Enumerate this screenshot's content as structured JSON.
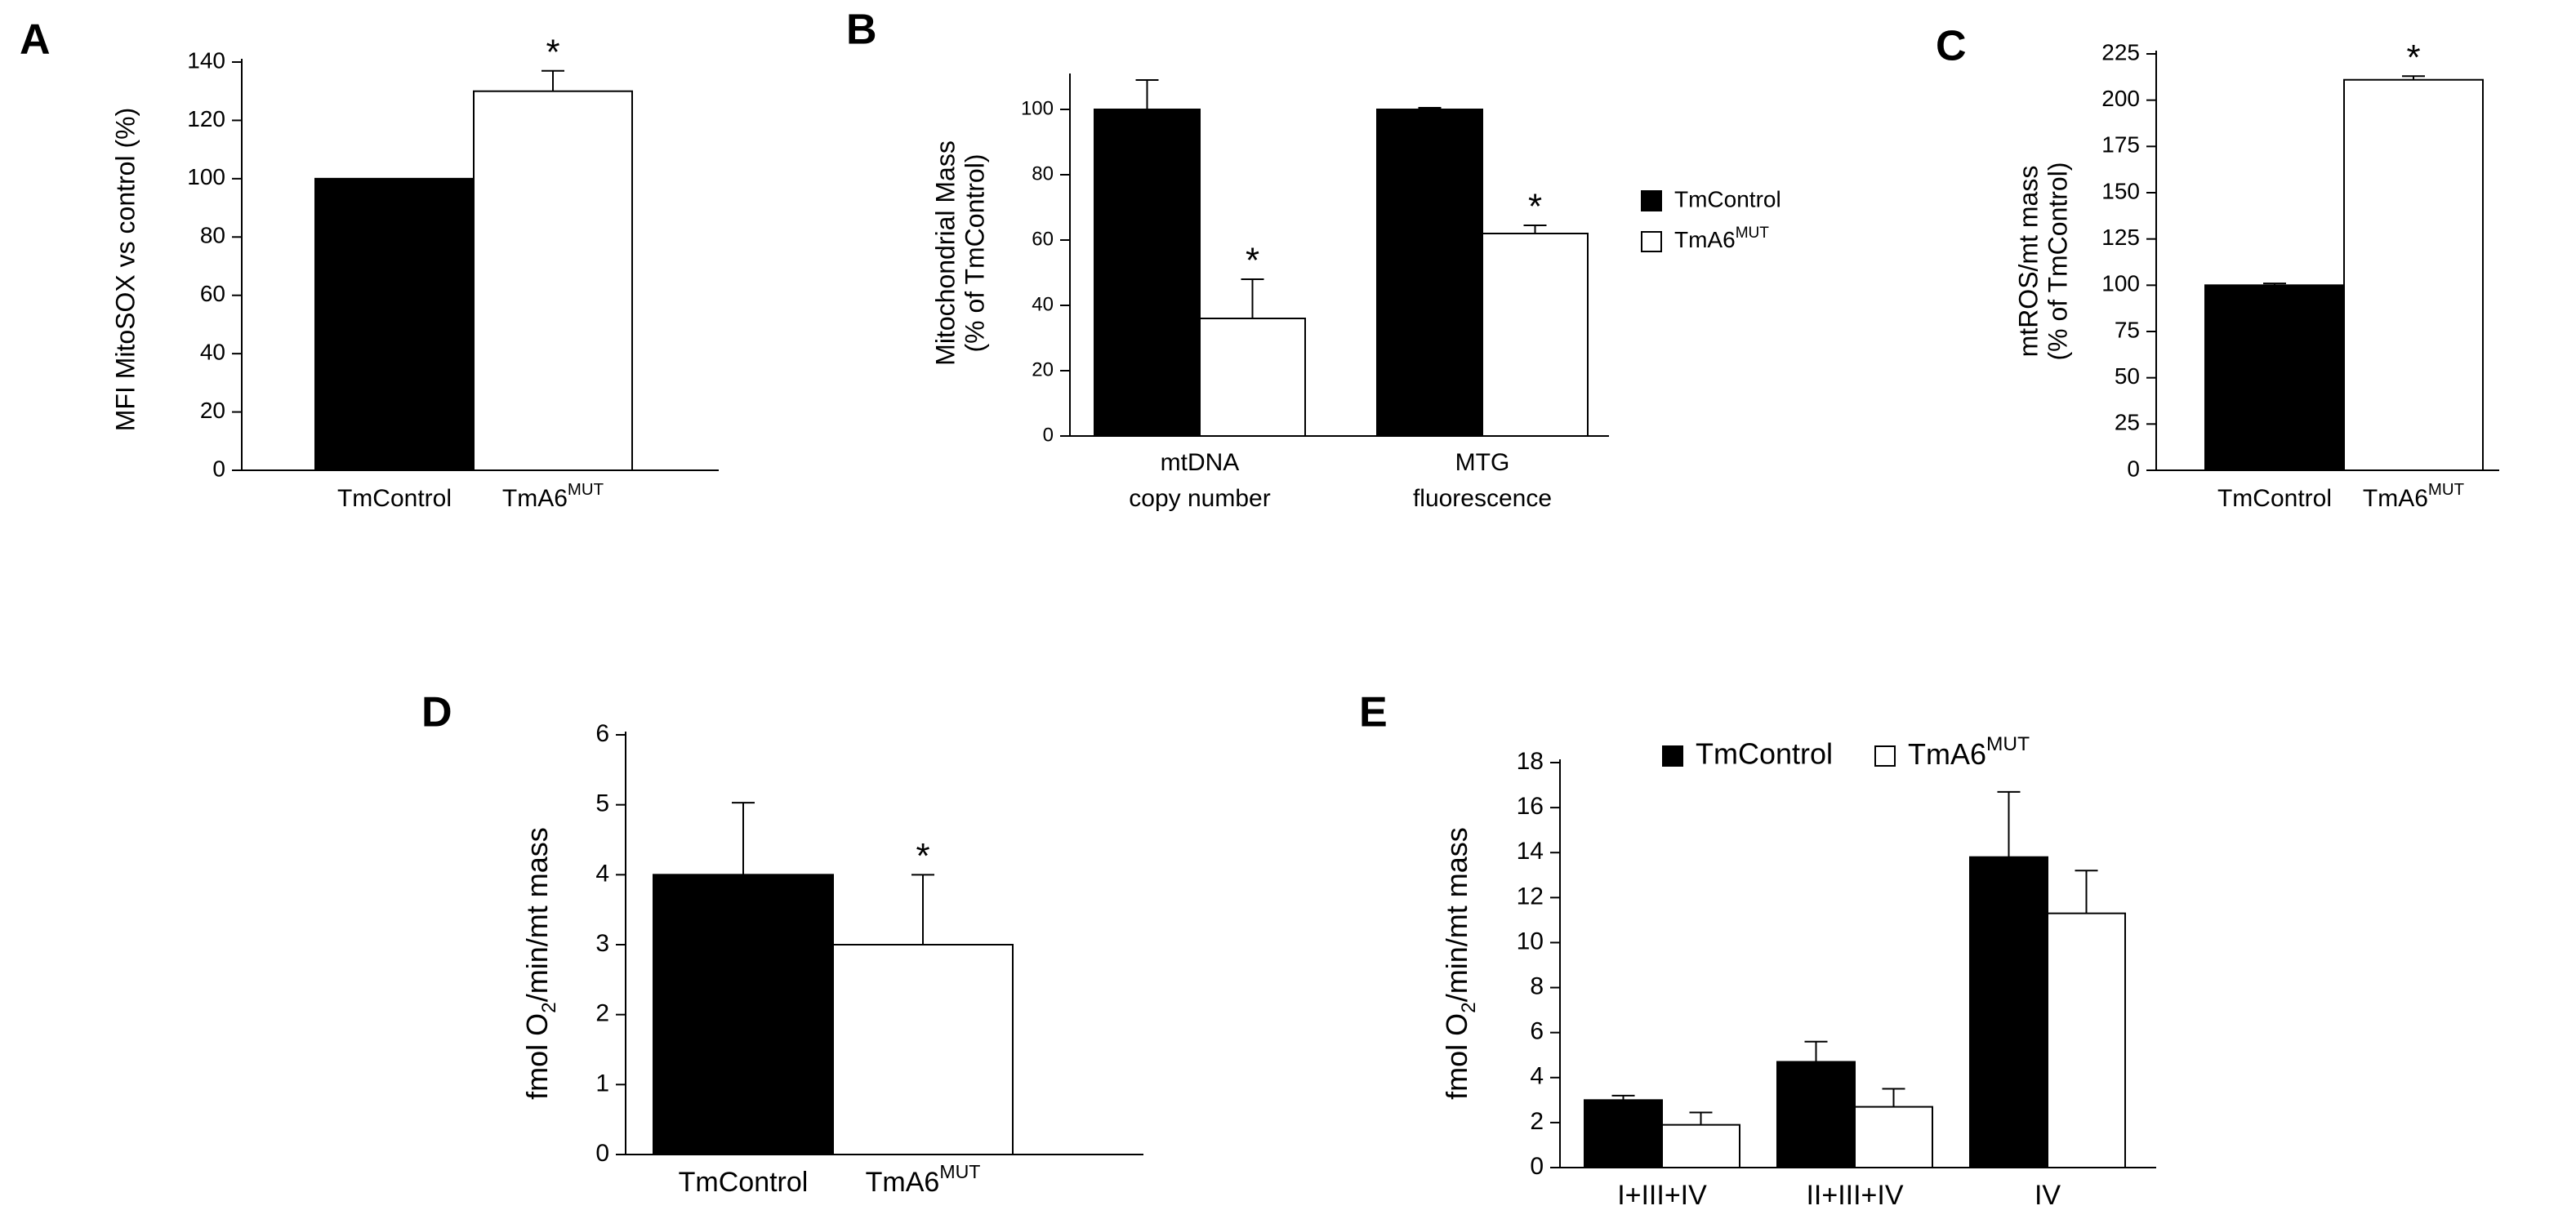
{
  "chart_data": [
    {
      "type": "bar",
      "panel": "A",
      "ylabel": [
        "MFI MitoSOX vs control (%)"
      ],
      "categories": [
        "TmControl",
        [
          "TmA6",
          {
            "sup": "MUT"
          }
        ]
      ],
      "values": [
        100,
        130
      ],
      "errors": [
        null,
        7
      ],
      "colors": [
        "#000000",
        "#ffffff"
      ],
      "ylim": [
        0,
        140
      ],
      "yticks": [
        0,
        20,
        40,
        60,
        80,
        100,
        120,
        140
      ],
      "annotations": [
        {
          "text": "*",
          "index": 1
        }
      ]
    },
    {
      "type": "grouped-bar",
      "panel": "B",
      "ylabel": [
        "Mitochondrial Mass",
        "(% of TmControl)"
      ],
      "categories": [
        {
          "lines": [
            "mtDNA",
            "copy number"
          ]
        },
        {
          "lines": [
            "MTG",
            "fluorescence"
          ]
        }
      ],
      "series": [
        {
          "name": "TmControl",
          "color": "#000000",
          "values": [
            100,
            100
          ],
          "errors": [
            9,
            0.5
          ]
        },
        {
          "name": [
            "TmA6",
            {
              "sup": "MUT"
            }
          ],
          "color": "#ffffff",
          "values": [
            36,
            62
          ],
          "errors": [
            12,
            2.5
          ]
        }
      ],
      "ylim": [
        0,
        110
      ],
      "yticks": [
        0,
        20,
        40,
        60,
        80,
        100
      ],
      "legend": "right",
      "annotations": [
        {
          "text": "*",
          "series": 1,
          "index": 0
        },
        {
          "text": "*",
          "series": 1,
          "index": 1
        }
      ]
    },
    {
      "type": "bar",
      "panel": "C",
      "ylabel": [
        "mtROS/mt  mass",
        "(% of TmControl)"
      ],
      "categories": [
        "TmControl",
        [
          "TmA6",
          {
            "sup": "MUT"
          }
        ]
      ],
      "values": [
        100,
        211
      ],
      "errors": [
        1,
        2
      ],
      "colors": [
        "#000000",
        "#ffffff"
      ],
      "ylim": [
        0,
        225
      ],
      "yticks": [
        0,
        25,
        50,
        75,
        100,
        125,
        150,
        175,
        200,
        225
      ],
      "annotations": [
        {
          "text": "*",
          "index": 1
        }
      ]
    },
    {
      "type": "bar",
      "panel": "D",
      "ylabel": [
        [
          "fmol O",
          {
            "sub": "2"
          },
          "/min/mt mass"
        ]
      ],
      "categories": [
        "TmControl",
        [
          "TmA6",
          {
            "sup": "MUT"
          }
        ]
      ],
      "values": [
        4,
        3
      ],
      "errors": [
        1.03,
        1
      ],
      "colors": [
        "#000000",
        "#ffffff"
      ],
      "ylim": [
        0,
        6
      ],
      "yticks": [
        0,
        1,
        2,
        3,
        4,
        5,
        6
      ],
      "annotations": [
        {
          "text": "*",
          "index": 1
        }
      ]
    },
    {
      "type": "grouped-bar",
      "panel": "E",
      "ylabel": [
        [
          "fmol O",
          {
            "sub": "2"
          },
          "/min/mt mass"
        ]
      ],
      "categories": [
        "I+III+IV",
        "II+III+IV",
        "IV"
      ],
      "series": [
        {
          "name": "TmControl",
          "color": "#000000",
          "values": [
            3.0,
            4.7,
            13.8
          ],
          "errors": [
            0.2,
            0.9,
            2.9
          ]
        },
        {
          "name": [
            "TmA6",
            {
              "sup": "MUT"
            }
          ],
          "color": "#ffffff",
          "values": [
            1.9,
            2.7,
            11.3
          ],
          "errors": [
            0.55,
            0.8,
            1.9
          ]
        }
      ],
      "ylim": [
        0,
        18
      ],
      "yticks": [
        0,
        2,
        4,
        6,
        8,
        10,
        12,
        14,
        16,
        18
      ],
      "legend": "top",
      "annotations": []
    }
  ]
}
